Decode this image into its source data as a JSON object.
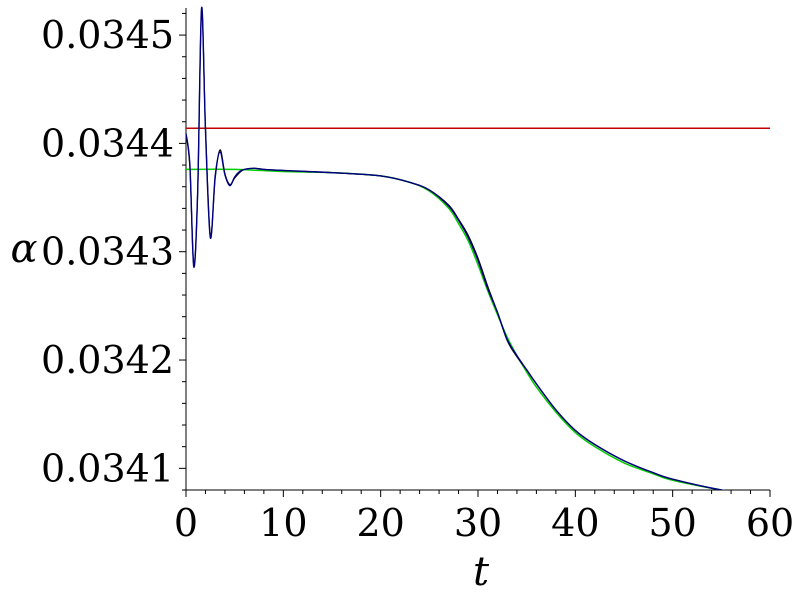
{
  "chart_data": {
    "type": "line",
    "xlabel": "t",
    "ylabel": "α",
    "xlim": [
      0,
      60
    ],
    "ylim": [
      0.03408,
      0.034525
    ],
    "xticks": [
      0,
      10,
      20,
      30,
      40,
      50,
      60
    ],
    "xtick_labels": [
      "0",
      "10",
      "20",
      "30",
      "40",
      "50",
      "60"
    ],
    "yticks": [
      0.0341,
      0.0342,
      0.0343,
      0.0344,
      0.0345
    ],
    "ytick_labels": [
      "0.0341",
      "0.0342",
      "0.0343",
      "0.0344",
      "0.0345"
    ],
    "grid": false,
    "series": [
      {
        "color": "#c00000",
        "x": [
          0,
          60
        ],
        "y": [
          0.034414,
          0.034414
        ]
      },
      {
        "color": "#00cc00",
        "x": [
          0,
          5,
          10,
          15,
          20,
          23,
          25,
          27,
          28,
          29,
          30,
          31,
          32,
          33,
          34,
          35,
          36,
          38,
          40,
          42,
          45,
          48,
          50,
          55,
          60
        ],
        "y": [
          0.034376,
          0.034376,
          0.034374,
          0.034373,
          0.03437,
          0.034364,
          0.034356,
          0.03434,
          0.034326,
          0.03431,
          0.034288,
          0.034264,
          0.034242,
          0.034221,
          0.034204,
          0.034189,
          0.034175,
          0.034152,
          0.034133,
          0.03412,
          0.034105,
          0.034095,
          0.034089,
          0.03408,
          0.034073
        ]
      },
      {
        "color": "#000000",
        "x": [
          0,
          0.4,
          0.8,
          1.2,
          1.6,
          2.0,
          2.5,
          3.0,
          3.5,
          4.0,
          4.5,
          5.0,
          5.5,
          6.0,
          7.0,
          8.0,
          10,
          15,
          20,
          23,
          25,
          27,
          28,
          29,
          30,
          31,
          32,
          33,
          34,
          35,
          36,
          38,
          40,
          42,
          45,
          48,
          50,
          55,
          60
        ],
        "y": [
          0.034409,
          0.034378,
          0.034288,
          0.034355,
          0.034522,
          0.034415,
          0.034315,
          0.034368,
          0.034394,
          0.034372,
          0.034362,
          0.034368,
          0.034373,
          0.034376,
          0.034377,
          0.034376,
          0.034375,
          0.034373,
          0.03437,
          0.034364,
          0.034357,
          0.034343,
          0.03433,
          0.034315,
          0.034294,
          0.034268,
          0.034244,
          0.034218,
          0.034203,
          0.034191,
          0.034178,
          0.034154,
          0.034135,
          0.034122,
          0.034107,
          0.034096,
          0.03409,
          0.03408,
          0.034073
        ]
      },
      {
        "color": "#000080",
        "x": [
          0,
          0.4,
          0.8,
          1.2,
          1.6,
          2.0,
          2.5,
          3.0,
          3.5,
          4.0,
          4.5,
          5.0,
          5.5,
          6.0,
          7.0,
          8.0,
          10,
          15,
          20,
          23,
          25,
          27,
          28,
          29,
          30,
          31,
          32,
          33,
          34,
          35,
          36,
          38,
          40,
          42,
          45,
          48,
          50,
          55,
          60
        ],
        "y": [
          0.034409,
          0.03438,
          0.034286,
          0.034356,
          0.034525,
          0.034412,
          0.034313,
          0.03437,
          0.034392,
          0.034371,
          0.034361,
          0.034369,
          0.034374,
          0.034376,
          0.034377,
          0.034376,
          0.034375,
          0.034373,
          0.03437,
          0.034364,
          0.034357,
          0.034342,
          0.034329,
          0.034313,
          0.034292,
          0.034266,
          0.034244,
          0.034219,
          0.034204,
          0.034191,
          0.034178,
          0.034154,
          0.034135,
          0.034122,
          0.034107,
          0.034096,
          0.03409,
          0.03408,
          0.034073
        ]
      }
    ]
  }
}
